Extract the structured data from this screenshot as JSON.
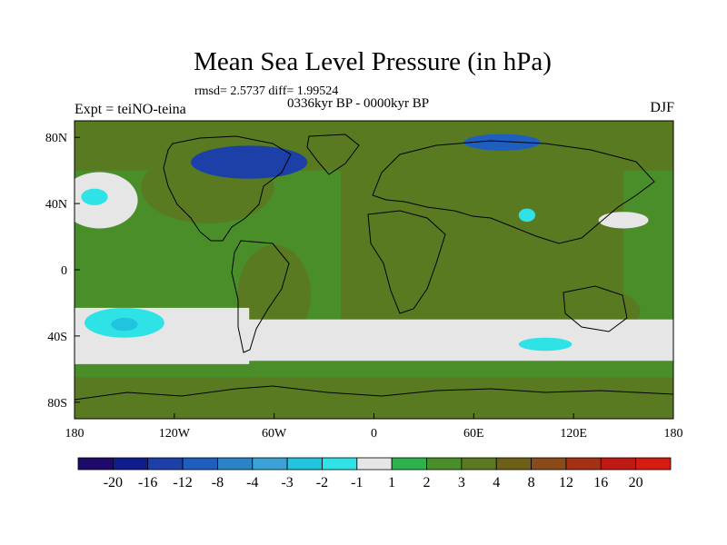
{
  "header": {
    "title": "Mean Sea Level Pressure (in hPa)",
    "stats": "rmsd= 2.5737 diff= 1.99524",
    "period": "0336kyr BP - 0000kyr BP",
    "experiment": "Expt = teiNO-teina",
    "season": "DJF"
  },
  "chart_data": {
    "type": "heatmap",
    "title": "Mean Sea Level Pressure (in hPa)",
    "subtitle": "0336kyr BP - 0000kyr BP",
    "field": "mean sea level pressure difference",
    "units": "hPa",
    "xlabel": "",
    "ylabel": "",
    "xlim": [
      -180,
      180
    ],
    "ylim": [
      -90,
      90
    ],
    "x_ticks": [
      {
        "value": -180,
        "label": "180"
      },
      {
        "value": -120,
        "label": "120W"
      },
      {
        "value": -60,
        "label": "60W"
      },
      {
        "value": 0,
        "label": "0"
      },
      {
        "value": 60,
        "label": "60E"
      },
      {
        "value": 120,
        "label": "120E"
      },
      {
        "value": 180,
        "label": "180"
      }
    ],
    "y_ticks": [
      {
        "value": 80,
        "label": "80N"
      },
      {
        "value": 40,
        "label": "40N"
      },
      {
        "value": 0,
        "label": "0"
      },
      {
        "value": -40,
        "label": "40S"
      },
      {
        "value": -80,
        "label": "80S"
      }
    ],
    "colorbar": {
      "labels": [
        "-20",
        "-16",
        "-12",
        "-8",
        "-4",
        "-3",
        "-2",
        "-1",
        "1",
        "2",
        "3",
        "4",
        "8",
        "12",
        "16",
        "20"
      ],
      "colors": [
        "#1d0a6a",
        "#0f1d8c",
        "#1c3fa8",
        "#1e5ebe",
        "#2c84c8",
        "#3aa2d6",
        "#20c4de",
        "#2ee2e6",
        "#e6e6e6",
        "#2db34e",
        "#4a8e2a",
        "#5a7a22",
        "#6e6018",
        "#8a4a1a",
        "#a63014",
        "#c01812",
        "#d61c10"
      ]
    },
    "regions": [
      {
        "name": "base-positive",
        "value_range": [
          2,
          3
        ],
        "level": 10,
        "shape": "rect",
        "lon": [
          -180,
          180
        ],
        "lat": [
          -90,
          90
        ]
      },
      {
        "name": "eurasia-africa-lows",
        "value_range": [
          3,
          4
        ],
        "level": 11,
        "shape": "rect",
        "lon": [
          -20,
          150
        ],
        "lat": [
          -35,
          75
        ]
      },
      {
        "name": "south-america",
        "value_range": [
          3,
          4
        ],
        "level": 11,
        "shape": "ellipse",
        "center": [
          -60,
          -15
        ],
        "radius": [
          22,
          30
        ]
      },
      {
        "name": "north-america",
        "value_range": [
          3,
          4
        ],
        "level": 11,
        "shape": "ellipse",
        "center": [
          -100,
          50
        ],
        "radius": [
          40,
          22
        ]
      },
      {
        "name": "arctic-belt",
        "value_range": [
          3,
          4
        ],
        "level": 11,
        "shape": "rect",
        "lon": [
          -180,
          180
        ],
        "lat": [
          60,
          90
        ]
      },
      {
        "name": "antarctica",
        "value_range": [
          3,
          4
        ],
        "level": 11,
        "shape": "rect",
        "lon": [
          -180,
          180
        ],
        "lat": [
          -90,
          -65
        ]
      },
      {
        "name": "australia",
        "value_range": [
          3,
          4
        ],
        "level": 11,
        "shape": "ellipse",
        "center": [
          135,
          -25
        ],
        "radius": [
          25,
          13
        ]
      },
      {
        "name": "southern-ocean-band",
        "value_range": [
          -1,
          1
        ],
        "level": 8,
        "shape": "rect",
        "lon": [
          -140,
          180
        ],
        "lat": [
          -55,
          -30
        ]
      },
      {
        "name": "south-pacific-band",
        "value_range": [
          -1,
          1
        ],
        "level": 8,
        "shape": "rect",
        "lon": [
          -180,
          -75
        ],
        "lat": [
          -57,
          -23
        ]
      },
      {
        "name": "north-pacific-low",
        "value_range": [
          -1,
          1
        ],
        "level": 8,
        "shape": "ellipse",
        "center": [
          -165,
          42
        ],
        "radius": [
          23,
          17
        ]
      },
      {
        "name": "north-pacific-low-core",
        "value_range": [
          -2,
          -1
        ],
        "level": 7,
        "shape": "ellipse",
        "center": [
          -168,
          44
        ],
        "radius": [
          8,
          5
        ]
      },
      {
        "name": "south-pacific-low-core",
        "value_range": [
          -2,
          -1
        ],
        "level": 7,
        "shape": "ellipse",
        "center": [
          -150,
          -32
        ],
        "radius": [
          24,
          9
        ]
      },
      {
        "name": "south-pacific-low-inner",
        "value_range": [
          -3,
          -2
        ],
        "level": 6,
        "shape": "ellipse",
        "center": [
          -150,
          -33
        ],
        "radius": [
          8,
          4
        ]
      },
      {
        "name": "indian-ocean-low",
        "value_range": [
          -2,
          -1
        ],
        "level": 7,
        "shape": "ellipse",
        "center": [
          103,
          -45
        ],
        "radius": [
          16,
          4
        ]
      },
      {
        "name": "east-asia-low",
        "value_range": [
          -1,
          1
        ],
        "level": 8,
        "shape": "ellipse",
        "center": [
          150,
          30
        ],
        "radius": [
          15,
          5
        ]
      },
      {
        "name": "tibet-low",
        "value_range": [
          -2,
          -1
        ],
        "level": 7,
        "shape": "ellipse",
        "center": [
          92,
          33
        ],
        "radius": [
          5,
          4
        ]
      },
      {
        "name": "canadian-arctic-low",
        "value_range": [
          -16,
          -12
        ],
        "level": 2,
        "shape": "ellipse",
        "center": [
          -75,
          65
        ],
        "radius": [
          35,
          10
        ]
      },
      {
        "name": "siberian-arctic-low",
        "value_range": [
          -12,
          -8
        ],
        "level": 3,
        "shape": "ellipse",
        "center": [
          77,
          77
        ],
        "radius": [
          23,
          5
        ]
      }
    ]
  },
  "colorbar": {
    "labels": [
      "-20",
      "-16",
      "-12",
      "-8",
      "-4",
      "-3",
      "-2",
      "-1",
      "1",
      "2",
      "3",
      "4",
      "8",
      "12",
      "16",
      "20"
    ]
  }
}
